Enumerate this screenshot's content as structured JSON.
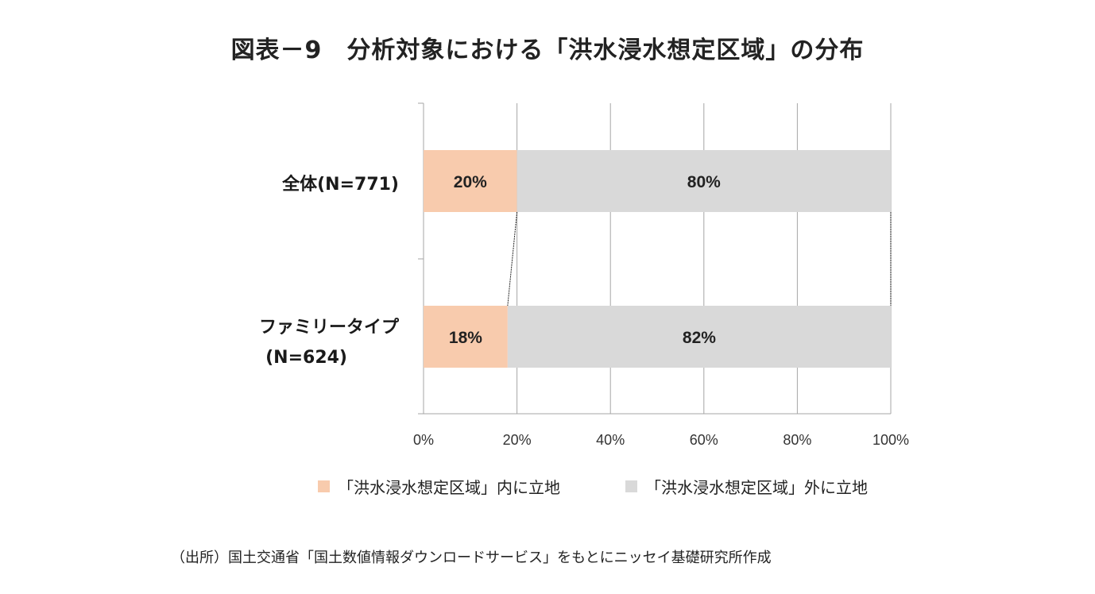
{
  "title": "図表－9　分析対象における「洪水浸水想定区域」の分布",
  "categories_display": {
    "c1": "全体(N=771)",
    "c2_line1": "ファミリータイプ",
    "c2_line2": "(N=624)"
  },
  "legend": {
    "inside": "「洪水浸水想定区域」内に立地",
    "outside": "「洪水浸水想定区域」外に立地"
  },
  "source": "（出所）国土交通省「国土数値情報ダウンロードサービス」をもとにニッセイ基礎研究所作成",
  "colors": {
    "inside": "#f8cbad",
    "outside": "#d9d9d9",
    "grid": "#a6a6a6",
    "text": "#222222"
  },
  "chart_data": {
    "type": "bar",
    "orientation": "horizontal",
    "stacked": "percent",
    "categories": [
      "全体(N=771)",
      "ファミリータイプ(N=624)"
    ],
    "series": [
      {
        "name": "「洪水浸水想定区域」内に立地",
        "values": [
          20,
          18
        ],
        "labels": [
          "20%",
          "18%"
        ]
      },
      {
        "name": "「洪水浸水想定区域」外に立地",
        "values": [
          80,
          82
        ],
        "labels": [
          "80%",
          "82%"
        ]
      }
    ],
    "x_ticks": [
      "0%",
      "20%",
      "40%",
      "60%",
      "80%",
      "100%"
    ],
    "xlim": [
      0,
      100
    ],
    "grid": true,
    "series_lines": true,
    "legend_position": "bottom"
  }
}
